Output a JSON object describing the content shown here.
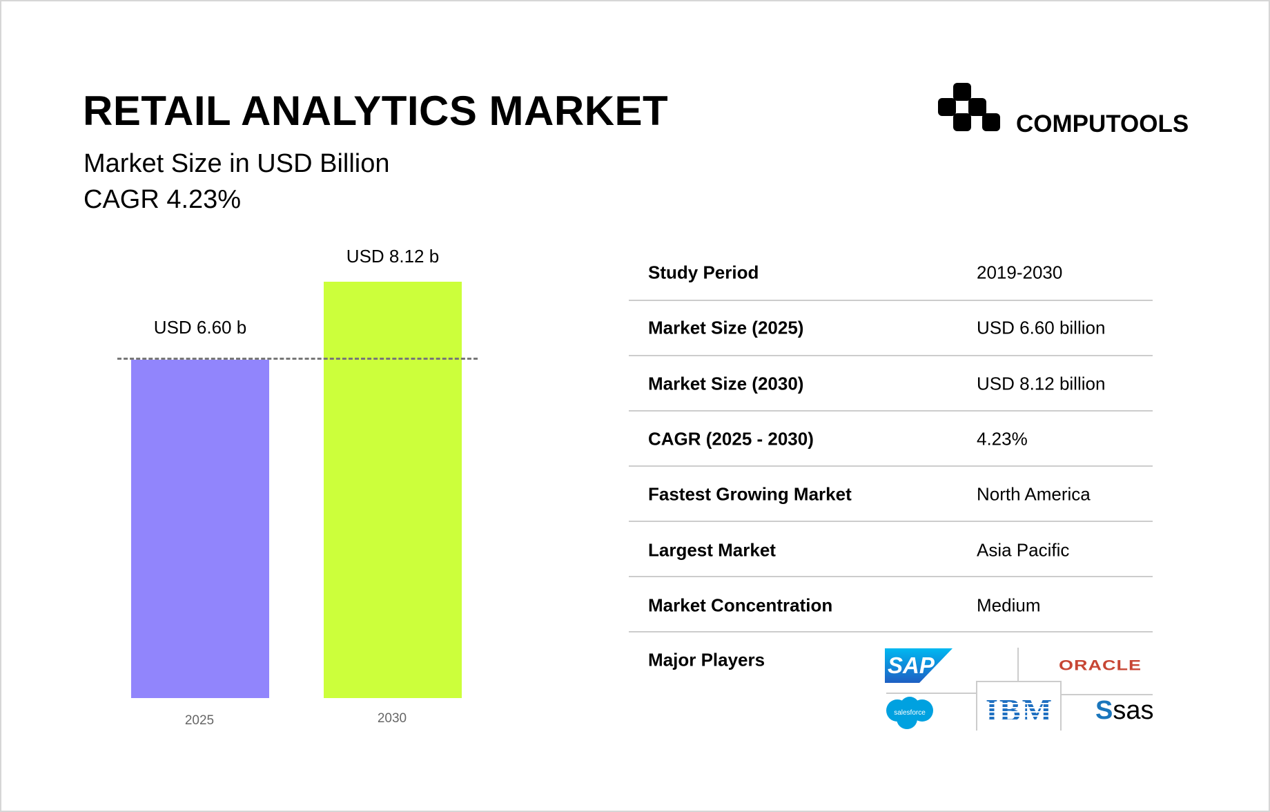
{
  "header": {
    "title": "RETAIL ANALYTICS MARKET",
    "subtitle": "Market Size in USD Billion",
    "cagr": "CAGR 4.23%"
  },
  "brand": {
    "name": "COMPUTOOLS"
  },
  "chart_data": {
    "type": "bar",
    "categories": [
      "2025",
      "2030"
    ],
    "values": [
      6.6,
      8.12
    ],
    "data_labels": [
      "USD 6.60 b",
      "USD 8.12 b"
    ],
    "colors": [
      "#9185fc",
      "#ccff3b"
    ],
    "reference_line": 6.6,
    "ylim": [
      0,
      8.12
    ],
    "grid": false
  },
  "table": {
    "rows": [
      {
        "label": "Study Period",
        "value": "2019-2030"
      },
      {
        "label": "Market Size (2025)",
        "value": "USD 6.60 billion"
      },
      {
        "label": "Market Size (2030)",
        "value": "USD 8.12 billion"
      },
      {
        "label": "CAGR (2025 - 2030)",
        "value": "4.23%"
      },
      {
        "label": "Fastest Growing Market",
        "value": "North America"
      },
      {
        "label": "Largest Market",
        "value": "Asia Pacific"
      },
      {
        "label": "Market Concentration",
        "value": "Medium"
      },
      {
        "label": "Major Players",
        "value": ""
      }
    ]
  },
  "players": [
    "SAP",
    "ORACLE",
    "salesforce",
    "IBM",
    "sas"
  ]
}
